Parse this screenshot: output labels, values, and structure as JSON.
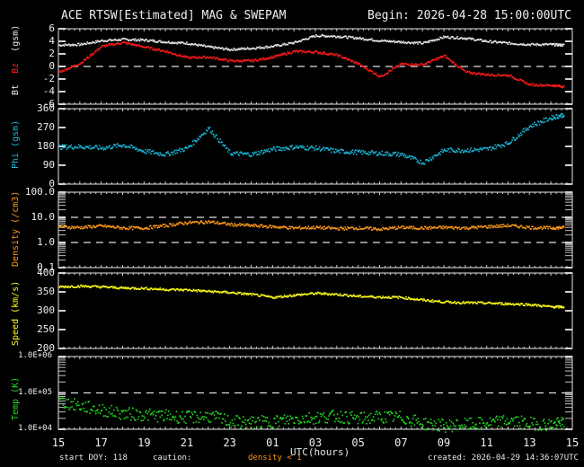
{
  "header": {
    "title": "ACE RTSW[Estimated] MAG & SWEPAM",
    "begin": "Begin: 2026-04-28 15:00:00UTC"
  },
  "footer": {
    "start_doy": "start DOY: 118",
    "caution": "caution:",
    "density_note": "density < 1",
    "xlabel": "UTC(hours)",
    "created": "created: 2026-04-29 14:36:07UTC"
  },
  "colors": {
    "bt": "#e8e8e8",
    "bz": "#ff1a1a",
    "phi": "#1ab8d8",
    "density": "#ff9a1a",
    "speed": "#ffff1a",
    "temp": "#22dd22",
    "axis": "#e8e8e8",
    "background": "#000000"
  },
  "chart_data": [
    {
      "type": "scatter",
      "title": "Bt / Bz (gsm)",
      "ylabel_parts": [
        "Bt",
        "Bz",
        "(gsm)"
      ],
      "ylim": [
        -6,
        6
      ],
      "yticks": [
        "6",
        "4",
        "2",
        "0",
        "-2",
        "-4",
        "-6"
      ],
      "x": [
        15,
        16,
        17,
        18,
        19,
        20,
        21,
        22,
        23,
        0,
        1,
        2,
        3,
        4,
        5,
        6,
        7,
        8,
        9,
        10,
        11,
        12,
        13,
        14,
        14.6
      ],
      "series": [
        {
          "name": "Bt",
          "values": [
            3.5,
            3.6,
            4.2,
            4.4,
            4.3,
            4.0,
            3.8,
            3.2,
            2.8,
            3.0,
            3.3,
            3.9,
            5.0,
            4.9,
            4.6,
            4.2,
            4.0,
            3.8,
            4.8,
            4.6,
            4.1,
            3.8,
            3.6,
            3.6,
            3.5
          ]
        },
        {
          "name": "Bz",
          "values": [
            -0.8,
            0.6,
            3.3,
            3.9,
            3.2,
            2.5,
            1.5,
            1.6,
            1.0,
            1.0,
            1.6,
            2.5,
            2.4,
            1.9,
            0.5,
            -1.5,
            0.5,
            0.4,
            1.8,
            -0.8,
            -1.2,
            -1.3,
            -2.8,
            -2.9,
            -3.1
          ]
        }
      ],
      "reference_line": 0
    },
    {
      "type": "scatter",
      "title": "Phi (gsm)",
      "ylabel": "Phi (gsm)",
      "ylim": [
        0,
        360
      ],
      "yticks": [
        "360",
        "270",
        "180",
        "90",
        "0"
      ],
      "x": [
        15,
        16,
        17,
        18,
        19,
        20,
        21,
        22,
        23,
        0,
        1,
        2,
        3,
        4,
        5,
        6,
        7,
        8,
        9,
        10,
        11,
        12,
        13,
        14,
        14.6
      ],
      "series": [
        {
          "name": "Phi",
          "values": [
            180,
            182,
            175,
            190,
            160,
            145,
            175,
            270,
            150,
            145,
            170,
            180,
            175,
            160,
            155,
            150,
            145,
            105,
            165,
            165,
            170,
            200,
            280,
            320,
            335
          ]
        }
      ]
    },
    {
      "type": "scatter",
      "title": "Density (/cm3)",
      "ylabel": "Density (/cm3)",
      "yscale": "log",
      "ylim": [
        0.1,
        100.0
      ],
      "yticks": [
        "100.0",
        "10.0",
        "1.0",
        "0.1"
      ],
      "reference_lines": [
        10.0,
        1.0
      ],
      "x": [
        15,
        16,
        17,
        18,
        19,
        20,
        21,
        22,
        23,
        0,
        1,
        2,
        3,
        4,
        5,
        6,
        7,
        8,
        9,
        10,
        11,
        12,
        13,
        14,
        14.6
      ],
      "series": [
        {
          "name": "Density",
          "values": [
            4.5,
            4.2,
            4.8,
            4.0,
            4.0,
            5.0,
            6.5,
            7.0,
            5.5,
            5.0,
            4.5,
            4.0,
            4.2,
            3.8,
            4.0,
            3.6,
            4.2,
            4.0,
            4.2,
            4.0,
            4.5,
            5.0,
            4.2,
            4.0,
            4.2
          ]
        }
      ]
    },
    {
      "type": "scatter",
      "title": "Speed (km/s)",
      "ylabel": "Speed (km/s)",
      "ylim": [
        200,
        400
      ],
      "yticks": [
        "400",
        "350",
        "300",
        "250",
        "200"
      ],
      "x": [
        15,
        16,
        17,
        18,
        19,
        20,
        21,
        22,
        23,
        0,
        1,
        2,
        3,
        4,
        5,
        6,
        7,
        8,
        9,
        10,
        11,
        12,
        13,
        14,
        14.6
      ],
      "series": [
        {
          "name": "Speed",
          "values": [
            365,
            367,
            365,
            362,
            361,
            358,
            357,
            353,
            350,
            345,
            337,
            343,
            348,
            345,
            340,
            338,
            337,
            330,
            325,
            323,
            322,
            320,
            318,
            312,
            312
          ]
        }
      ]
    },
    {
      "type": "scatter",
      "title": "Temp (K)",
      "ylabel": "Temp (K)",
      "yscale": "log",
      "ylim": [
        10000,
        1000000
      ],
      "yticks": [
        "1.0E+06",
        "1.0E+05",
        "1.0E+04"
      ],
      "reference_line": 100000,
      "x": [
        15,
        16,
        17,
        18,
        19,
        20,
        21,
        22,
        23,
        0,
        1,
        2,
        3,
        4,
        5,
        6,
        7,
        8,
        9,
        10,
        11,
        12,
        13,
        14,
        14.6
      ],
      "series": [
        {
          "name": "Temp",
          "values": [
            60000,
            45000,
            35000,
            28000,
            26000,
            24000,
            22000,
            24000,
            17000,
            16000,
            17000,
            20000,
            22000,
            24000,
            20000,
            23000,
            22000,
            15000,
            13000,
            14000,
            15000,
            18000,
            15000,
            14000,
            15000
          ]
        }
      ]
    }
  ],
  "xaxis": {
    "label": "UTC(hours)",
    "ticks": [
      "15",
      "17",
      "19",
      "21",
      "23",
      "01",
      "03",
      "05",
      "07",
      "09",
      "11",
      "13",
      "15"
    ]
  }
}
